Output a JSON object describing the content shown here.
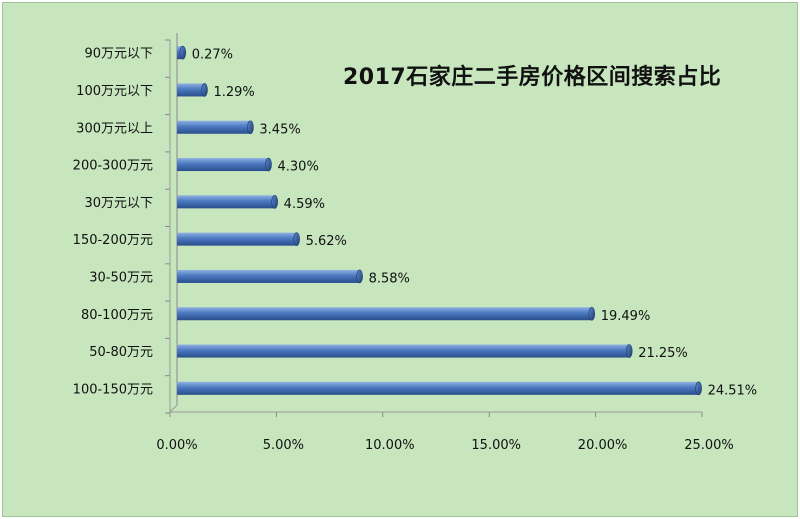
{
  "chart_data": {
    "type": "bar",
    "orientation": "horizontal",
    "title": "2017石家庄二手房价格区间搜索占比",
    "categories": [
      "90万元以下",
      "100万元以下",
      "300万元以上",
      "200-300万元",
      "30万元以下",
      "150-200万元",
      "30-50万元",
      "80-100万元",
      "50-80万元",
      "100-150万元"
    ],
    "values": [
      0.27,
      1.29,
      3.45,
      4.3,
      4.59,
      5.62,
      8.58,
      19.49,
      21.25,
      24.51
    ],
    "value_labels": [
      "0.27%",
      "1.29%",
      "3.45%",
      "4.30%",
      "4.59%",
      "5.62%",
      "8.58%",
      "19.49%",
      "21.25%",
      "24.51%"
    ],
    "xlim": [
      0,
      25
    ],
    "xticks": [
      0,
      5,
      10,
      15,
      20,
      25
    ],
    "xtick_labels": [
      "0.00%",
      "5.00%",
      "10.00%",
      "15.00%",
      "20.00%",
      "25.00%"
    ],
    "grid": false,
    "legend": "none",
    "colors": {
      "bar": "#4a78c0",
      "bar_dark": "#2a4e8c",
      "bar_light": "#8fb0e2",
      "background": "#c7e6be"
    }
  }
}
